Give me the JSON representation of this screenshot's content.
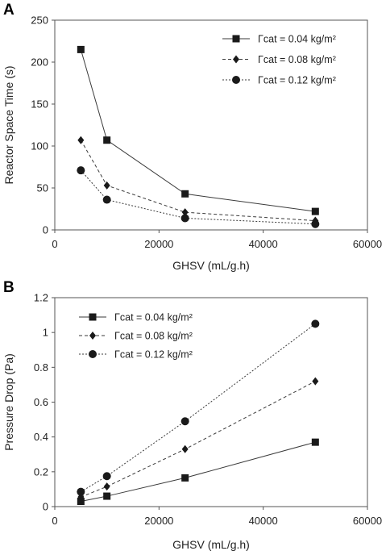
{
  "chart_data": [
    {
      "panel": "A",
      "type": "line",
      "xlabel": "GHSV (mL/g.h)",
      "ylabel": "Reactor Space Time (s)",
      "xlim": [
        0,
        60000
      ],
      "ylim": [
        0,
        250
      ],
      "xticks": [
        0,
        20000,
        40000,
        60000
      ],
      "xtick_labels": [
        "0",
        "20000",
        "40000",
        "60000"
      ],
      "yticks": [
        0,
        50,
        100,
        150,
        200,
        250
      ],
      "ytick_labels": [
        "0",
        "50",
        "100",
        "150",
        "200",
        "250"
      ],
      "grid": false,
      "legend_position": "top-right",
      "x": [
        5000,
        10000,
        25000,
        50000
      ],
      "series": [
        {
          "name": "Γcat = 0.04 kg/m²",
          "marker": "square",
          "line": "solid",
          "values": [
            215,
            107,
            43,
            22
          ]
        },
        {
          "name": "Γcat = 0.08 kg/m²",
          "marker": "diamond",
          "line": "dashed",
          "values": [
            107,
            53,
            21,
            11
          ]
        },
        {
          "name": "Γcat = 0.12 kg/m²",
          "marker": "circle",
          "line": "dotted",
          "values": [
            71,
            36,
            14,
            7
          ]
        }
      ]
    },
    {
      "panel": "B",
      "type": "line",
      "xlabel": "GHSV (mL/g.h)",
      "ylabel": "Pressure Drop (Pa)",
      "xlim": [
        0,
        60000
      ],
      "ylim": [
        0,
        1.2
      ],
      "xticks": [
        0,
        20000,
        40000,
        60000
      ],
      "xtick_labels": [
        "0",
        "20000",
        "40000",
        "60000"
      ],
      "yticks": [
        0,
        0.2,
        0.4,
        0.6,
        0.8,
        1.0,
        1.2
      ],
      "ytick_labels": [
        "0",
        "0.2",
        "0.4",
        "0.6",
        "0.8",
        "1",
        "1.2"
      ],
      "grid": false,
      "legend_position": "top-left",
      "x": [
        5000,
        10000,
        25000,
        50000
      ],
      "series": [
        {
          "name": "Γcat = 0.04 kg/m²",
          "marker": "square",
          "line": "solid",
          "values": [
            0.03,
            0.06,
            0.165,
            0.37
          ]
        },
        {
          "name": "Γcat = 0.08 kg/m²",
          "marker": "diamond",
          "line": "dashed",
          "values": [
            0.055,
            0.115,
            0.33,
            0.72
          ]
        },
        {
          "name": "Γcat = 0.12 kg/m²",
          "marker": "circle",
          "line": "dotted",
          "values": [
            0.085,
            0.175,
            0.49,
            1.05
          ]
        }
      ]
    }
  ],
  "colors": {
    "line": "#3a3a3a",
    "marker": "#1a1a1a",
    "axis": "#555555",
    "text": "#222222"
  }
}
